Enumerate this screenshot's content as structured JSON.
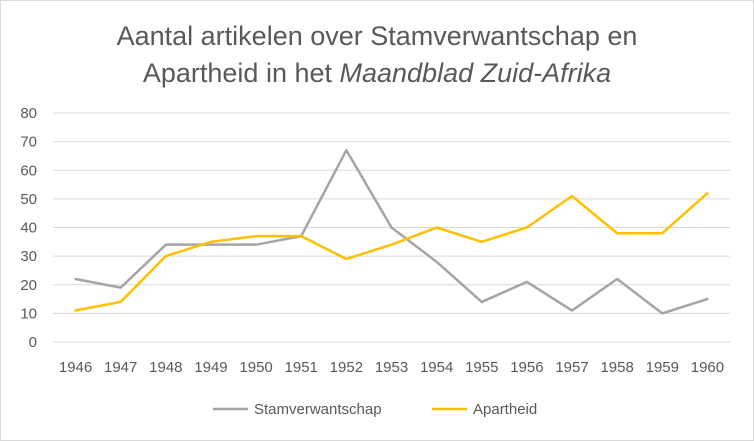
{
  "chart_data": {
    "type": "line",
    "title_line1": "Aantal artikelen over Stamverwantschap en",
    "title_line2_prefix": "Apartheid in het ",
    "title_line2_italic": "Maandblad Zuid-Afrika",
    "x": [
      1946,
      1947,
      1948,
      1949,
      1950,
      1951,
      1952,
      1953,
      1954,
      1955,
      1956,
      1957,
      1958,
      1959,
      1960
    ],
    "x_tick_labels": [
      "1946",
      "1947",
      "1948",
      "1949",
      "1950",
      "1951",
      "1952",
      "1953",
      "1954",
      "1955",
      "1956",
      "1957",
      "1958",
      "1959",
      "1960"
    ],
    "ylim": [
      0,
      80
    ],
    "y_ticks": [
      0,
      10,
      20,
      30,
      40,
      50,
      60,
      70,
      80
    ],
    "y_tick_labels": [
      "0",
      "10",
      "20",
      "30",
      "40",
      "50",
      "60",
      "70",
      "80"
    ],
    "grid": true,
    "legend_position": "bottom",
    "series": [
      {
        "name": "Stamverwantschap",
        "color": "#a5a5a5",
        "values": [
          22,
          19,
          34,
          34,
          34,
          37,
          67,
          40,
          28,
          14,
          21,
          11,
          22,
          10,
          15
        ]
      },
      {
        "name": "Apartheid",
        "color": "#ffc000",
        "values": [
          11,
          14,
          30,
          35,
          37,
          37,
          29,
          34,
          40,
          35,
          40,
          51,
          38,
          38,
          52
        ]
      }
    ]
  }
}
